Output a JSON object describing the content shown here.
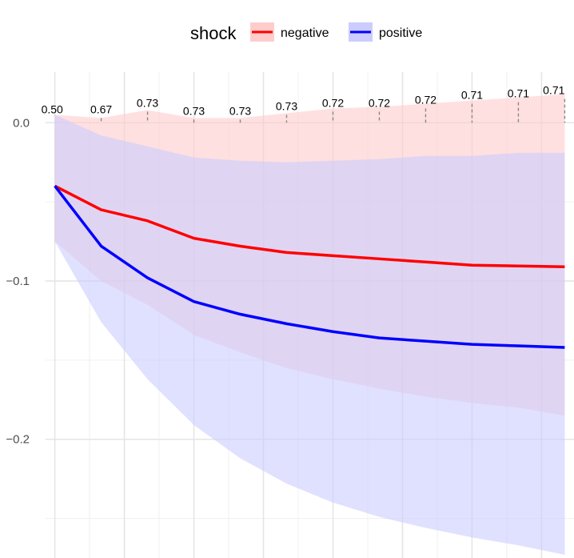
{
  "chart_data": {
    "type": "line",
    "title": "",
    "xlabel": "",
    "ylabel": "",
    "legend": {
      "title": "shock",
      "placement": "top",
      "entries": [
        {
          "name": "negative",
          "line_color": "#ff0000",
          "fill_color": "#ffcccc"
        },
        {
          "name": "positive",
          "line_color": "#0000ff",
          "fill_color": "#ccccff"
        }
      ]
    },
    "x": [
      0,
      1,
      2,
      3,
      4,
      5,
      6,
      7,
      8,
      9,
      10,
      11
    ],
    "xlim": [
      -0.2,
      11.2
    ],
    "ylim": [
      -0.275,
      0.032
    ],
    "y_ticks": [
      0.0,
      -0.1,
      -0.2
    ],
    "y_tick_labels": [
      "0.0",
      "−0.1",
      "−0.2"
    ],
    "y_minor_ticks": [
      -0.05,
      -0.15,
      -0.25
    ],
    "x_gridlines": [
      0,
      1.5,
      3,
      4.5,
      6,
      7.5,
      9,
      10.5
    ],
    "x_minor_gridlines": [
      0.75,
      2.25,
      3.75,
      5.25,
      6.75,
      8.25,
      9.75
    ],
    "grid": true,
    "series": [
      {
        "name": "negative",
        "color": "#ff0000",
        "band_color": "#ffcccc",
        "values": [
          -0.04,
          -0.055,
          -0.062,
          -0.073,
          -0.078,
          -0.082,
          -0.084,
          -0.086,
          -0.088,
          -0.09,
          -0.0905,
          -0.091
        ],
        "upper": [
          0.005,
          0.003,
          0.008,
          0.003,
          0.003,
          0.006,
          0.009,
          0.01,
          0.012,
          0.014,
          0.016,
          0.018
        ],
        "lower": [
          -0.075,
          -0.1,
          -0.115,
          -0.134,
          -0.145,
          -0.155,
          -0.162,
          -0.168,
          -0.173,
          -0.177,
          -0.18,
          -0.185
        ]
      },
      {
        "name": "positive",
        "color": "#0000ff",
        "band_color": "#ccccff",
        "values": [
          -0.04,
          -0.078,
          -0.098,
          -0.113,
          -0.121,
          -0.127,
          -0.132,
          -0.136,
          -0.138,
          -0.14,
          -0.141,
          -0.142
        ],
        "upper": [
          0.005,
          -0.008,
          -0.015,
          -0.022,
          -0.024,
          -0.025,
          -0.024,
          -0.023,
          -0.021,
          -0.021,
          -0.019,
          -0.019
        ],
        "lower": [
          -0.075,
          -0.126,
          -0.162,
          -0.191,
          -0.212,
          -0.228,
          -0.24,
          -0.249,
          -0.256,
          -0.262,
          -0.267,
          -0.273
        ]
      }
    ],
    "annotations": {
      "values": [
        "0.50",
        "0.67",
        "0.73",
        "0.73",
        "0.73",
        "0.73",
        "0.72",
        "0.72",
        "0.72",
        "0.71",
        "0.71",
        "0.71"
      ],
      "positions": [
        0.004,
        0.004,
        0.008,
        0.003,
        0.003,
        0.006,
        0.008,
        0.008,
        0.01,
        0.013,
        0.014,
        0.016
      ],
      "connector_style": "dashed"
    }
  }
}
